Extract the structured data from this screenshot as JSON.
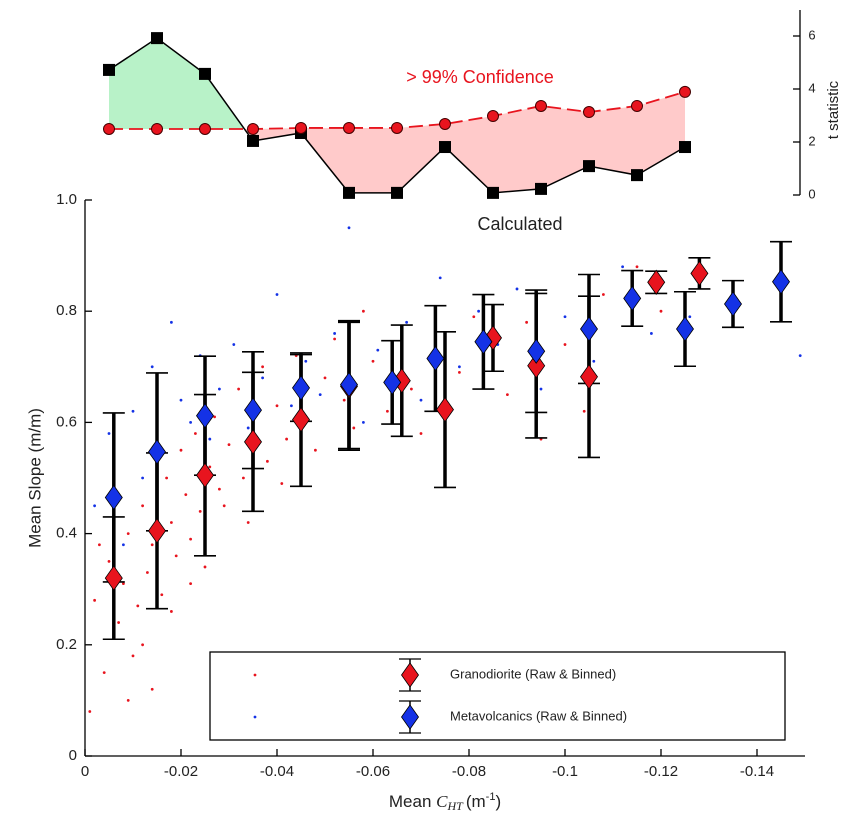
{
  "chart_data": [
    {
      "type": "line",
      "y_label": "t statistic",
      "x": [
        -0.005,
        -0.015,
        -0.025,
        -0.035,
        -0.045,
        -0.055,
        -0.065,
        -0.075,
        -0.085,
        -0.095,
        -0.105,
        -0.115,
        -0.125
      ],
      "series": [
        {
          "name": "Calculated",
          "color": "#000000",
          "fill_above": "#b8f2c8",
          "values": [
            4.72,
            5.92,
            4.57,
            2.04,
            2.34,
            0.08,
            0.08,
            1.81,
            0.08,
            0.23,
            1.09,
            0.75,
            1.81
          ]
        },
        {
          "name": "> 99% Confidence",
          "color": "#e8141e",
          "fill_above": "#ffcaca",
          "values": [
            2.49,
            2.49,
            2.49,
            2.49,
            2.53,
            2.53,
            2.53,
            2.68,
            2.98,
            3.36,
            3.13,
            3.36,
            3.89
          ]
        }
      ],
      "xlim": [
        0,
        -0.15
      ],
      "ylim": [
        0,
        7
      ],
      "yticks": [
        0,
        2,
        4,
        6
      ]
    },
    {
      "type": "scatter",
      "y_label": "Mean Slope (m/m)",
      "x_label": {
        "prefix": "Mean ",
        "var": "C",
        "sub": "HT",
        "unit": "(m",
        "exp": "-1",
        "close": ")"
      },
      "series": [
        {
          "name": "Granodiorite (Raw & Binned)",
          "color": "#e8141e",
          "raw_x": [
            -0.002,
            -0.004,
            -0.005,
            -0.006,
            -0.008,
            -0.009,
            -0.01,
            -0.011,
            -0.012,
            -0.013,
            -0.014,
            -0.016,
            -0.017,
            -0.018,
            -0.019,
            -0.02,
            -0.021,
            -0.022,
            -0.023,
            -0.024,
            -0.026,
            -0.027,
            -0.028,
            -0.03,
            -0.032,
            -0.033,
            -0.035,
            -0.037,
            -0.038,
            -0.04,
            -0.042,
            -0.044,
            -0.046,
            -0.048,
            -0.05,
            -0.052,
            -0.054,
            -0.056,
            -0.058,
            -0.06,
            -0.063,
            -0.066,
            -0.068,
            -0.07,
            -0.073,
            -0.075,
            -0.078,
            -0.081,
            -0.085,
            -0.088,
            -0.092,
            -0.095,
            -0.1,
            -0.104,
            -0.108,
            -0.115,
            -0.12,
            -0.003,
            -0.007,
            -0.012,
            -0.015,
            -0.018,
            -0.022,
            -0.025,
            -0.029,
            -0.034,
            -0.041,
            -0.001,
            -0.009,
            -0.014
          ],
          "raw_y": [
            0.28,
            0.15,
            0.35,
            0.22,
            0.31,
            0.4,
            0.18,
            0.27,
            0.45,
            0.33,
            0.38,
            0.29,
            0.5,
            0.42,
            0.36,
            0.55,
            0.47,
            0.31,
            0.58,
            0.44,
            0.52,
            0.61,
            0.48,
            0.56,
            0.66,
            0.5,
            0.59,
            0.7,
            0.53,
            0.63,
            0.57,
            0.72,
            0.61,
            0.55,
            0.68,
            0.75,
            0.64,
            0.59,
            0.8,
            0.71,
            0.62,
            0.77,
            0.66,
            0.58,
            0.74,
            0.52,
            0.69,
            0.79,
            0.71,
            0.65,
            0.78,
            0.57,
            0.74,
            0.62,
            0.83,
            0.88,
            0.8,
            0.38,
            0.24,
            0.2,
            0.47,
            0.26,
            0.39,
            0.34,
            0.45,
            0.42,
            0.49,
            0.08,
            0.1,
            0.12
          ],
          "x": [
            -0.006,
            -0.015,
            -0.025,
            -0.035,
            -0.045,
            -0.055,
            -0.066,
            -0.075,
            -0.085,
            -0.094,
            -0.105,
            -0.119,
            -0.128
          ],
          "values": [
            0.32,
            0.405,
            0.505,
            0.565,
            0.605,
            0.665,
            0.675,
            0.623,
            0.752,
            0.702,
            0.682,
            0.852,
            0.868
          ],
          "errors": [
            0.11,
            0.14,
            0.145,
            0.125,
            0.12,
            0.115,
            0.1,
            0.14,
            0.06,
            0.13,
            0.145,
            0.02,
            0.028
          ]
        },
        {
          "name": "Metavolcanics (Raw & Binned)",
          "color": "#1432e6",
          "raw_x": [
            -0.002,
            -0.005,
            -0.008,
            -0.01,
            -0.012,
            -0.014,
            -0.016,
            -0.018,
            -0.02,
            -0.022,
            -0.024,
            -0.026,
            -0.028,
            -0.031,
            -0.034,
            -0.037,
            -0.04,
            -0.043,
            -0.046,
            -0.049,
            -0.052,
            -0.055,
            -0.058,
            -0.061,
            -0.064,
            -0.067,
            -0.07,
            -0.074,
            -0.078,
            -0.082,
            -0.086,
            -0.09,
            -0.095,
            -0.1,
            -0.106,
            -0.112,
            -0.118,
            -0.126,
            -0.135,
            -0.149
          ],
          "raw_y": [
            0.45,
            0.58,
            0.38,
            0.62,
            0.5,
            0.7,
            0.55,
            0.78,
            0.64,
            0.6,
            0.72,
            0.57,
            0.66,
            0.74,
            0.59,
            0.68,
            0.83,
            0.63,
            0.71,
            0.65,
            0.76,
            0.95,
            0.6,
            0.73,
            0.68,
            0.78,
            0.64,
            0.86,
            0.7,
            0.8,
            0.74,
            0.84,
            0.66,
            0.79,
            0.71,
            0.88,
            0.76,
            0.79,
            0.83,
            0.72
          ],
          "x": [
            -0.006,
            -0.015,
            -0.025,
            -0.035,
            -0.045,
            -0.055,
            -0.064,
            -0.073,
            -0.083,
            -0.094,
            -0.105,
            -0.114,
            -0.125,
            -0.135,
            -0.145
          ],
          "values": [
            0.465,
            0.547,
            0.612,
            0.622,
            0.662,
            0.668,
            0.672,
            0.715,
            0.745,
            0.728,
            0.768,
            0.823,
            0.768,
            0.813,
            0.853
          ],
          "errors": [
            0.152,
            0.142,
            0.107,
            0.105,
            0.06,
            0.115,
            0.075,
            0.095,
            0.085,
            0.11,
            0.098,
            0.05,
            0.067,
            0.042,
            0.072
          ]
        }
      ],
      "xlim": [
        0,
        -0.15
      ],
      "ylim": [
        0,
        1
      ],
      "xticks": [
        0,
        -0.02,
        -0.04,
        -0.06,
        -0.08,
        -0.1,
        -0.12,
        -0.14
      ],
      "yticks": [
        0,
        0.2,
        0.4,
        0.6,
        0.8,
        {
          "value": 1,
          "label": "1.0"
        }
      ]
    }
  ]
}
